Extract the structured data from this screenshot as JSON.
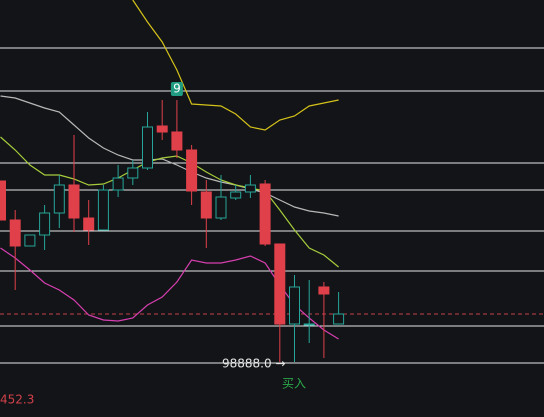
{
  "chart_data": {
    "type": "candlestick",
    "ylim": [
      0,
      417
    ],
    "up_color": "#26a69a",
    "down_color": "#e0404a",
    "open": [
      236,
      197,
      171,
      182,
      204,
      232,
      199,
      187,
      227,
      239,
      249,
      291,
      285,
      267,
      225,
      199,
      219,
      225,
      233,
      173,
      93,
      93,
      130,
      93
    ],
    "close": [
      197,
      171,
      182,
      204,
      232,
      199,
      187,
      227,
      239,
      249,
      290,
      285,
      267,
      226,
      199,
      220,
      225,
      232,
      173,
      93,
      130,
      93,
      123,
      103
    ],
    "high": [
      236,
      207,
      182,
      212,
      242,
      282,
      217,
      232,
      252,
      257,
      305,
      317,
      317,
      272,
      237,
      242,
      232,
      242,
      237,
      173,
      142,
      137,
      135,
      125
    ],
    "low": [
      197,
      127,
      171,
      167,
      189,
      185,
      172,
      187,
      220,
      232,
      247,
      277,
      259,
      212,
      169,
      197,
      217,
      219,
      171,
      55,
      55,
      74,
      59,
      95
    ],
    "lines": [
      {
        "color": "#d4c21a",
        "values": [
          null,
          null,
          null,
          null,
          null,
          null,
          null,
          null,
          null,
          417,
          395,
          375,
          347,
          313,
          312,
          311,
          303,
          290,
          287,
          297,
          301,
          311,
          314,
          317
        ]
      },
      {
        "color": "#b8b8b8",
        "values": [
          321,
          319,
          314,
          309,
          305,
          292,
          279,
          269,
          262,
          257,
          257,
          258,
          252,
          245,
          239,
          235,
          232,
          228,
          224,
          217,
          210,
          206,
          204,
          201
        ]
      },
      {
        "color": "#a6cc3c",
        "values": [
          280,
          267,
          252,
          242,
          242,
          238,
          232,
          233,
          239,
          247,
          255,
          259,
          261,
          254,
          245,
          237,
          232,
          229,
          226,
          207,
          187,
          169,
          162,
          150
        ]
      },
      {
        "color": "#d63fb0",
        "values": [
          169,
          159,
          147,
          134,
          127,
          117,
          102,
          97,
          96,
          99,
          112,
          120,
          135,
          157,
          154,
          154,
          157,
          161,
          154,
          132,
          112,
          99,
          87,
          78
        ]
      }
    ],
    "hlines": [
      369,
      326,
      254,
      227,
      186,
      146,
      91,
      54
    ],
    "price_line": 103,
    "signal": {
      "label": "9",
      "index": 12
    },
    "order_label": "98888.0 →",
    "buy_label": "买入",
    "corner_label": "452.3"
  }
}
